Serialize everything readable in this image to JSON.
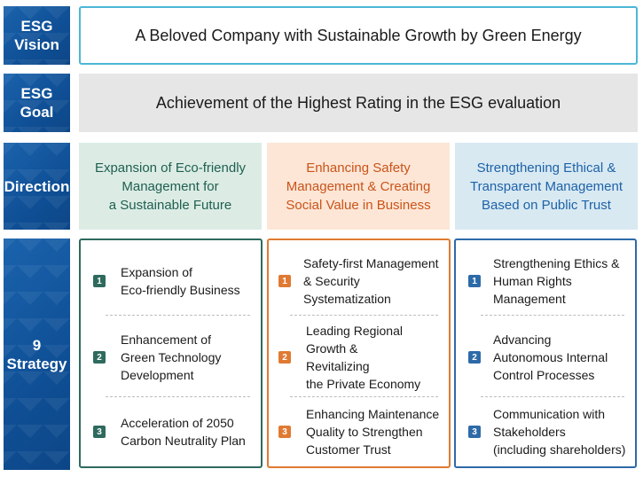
{
  "labels": {
    "vision": "ESG\nVision",
    "goal": "ESG\nGoal",
    "direction": "Direction",
    "strategy": "9\nStrategy"
  },
  "vision": "A Beloved Company with Sustainable Growth by Green Energy",
  "goal": "Achievement of the Highest Rating in the ESG evaluation",
  "directions": [
    "Expansion of Eco-friendly\nManagement for\na Sustainable Future",
    "Enhancing Safety\nManagement & Creating\nSocial Value in Business",
    "Strengthening Ethical &\nTransparent Management\nBased on Public Trust"
  ],
  "strategies": [
    {
      "items": [
        {
          "num": "1",
          "text": "Expansion of\nEco-friendly Business"
        },
        {
          "num": "2",
          "text": "Enhancement of\nGreen Technology\nDevelopment"
        },
        {
          "num": "3",
          "text": "Acceleration of 2050\nCarbon Neutrality Plan"
        }
      ]
    },
    {
      "items": [
        {
          "num": "1",
          "text": "Safety-first Management\n& Security Systematization"
        },
        {
          "num": "2",
          "text": "Leading Regional\nGrowth &\nRevitalizing\nthe Private Economy"
        },
        {
          "num": "3",
          "text": "Enhancing Maintenance\nQuality to Strengthen\nCustomer Trust"
        }
      ]
    },
    {
      "items": [
        {
          "num": "1",
          "text": "Strengthening Ethics &\nHuman Rights\nManagement"
        },
        {
          "num": "2",
          "text": "Advancing\nAutonomous Internal\nControl Processes"
        },
        {
          "num": "3",
          "text": "Communication with\nStakeholders\n(including shareholders)"
        }
      ]
    }
  ],
  "colors": {
    "label_blue": "#0f4f95",
    "vision_border": "#4bb7d6",
    "goal_bg": "#e6e6e6",
    "green": "#2e6a5e",
    "orange": "#e07a32",
    "blue": "#2d6aa8"
  }
}
